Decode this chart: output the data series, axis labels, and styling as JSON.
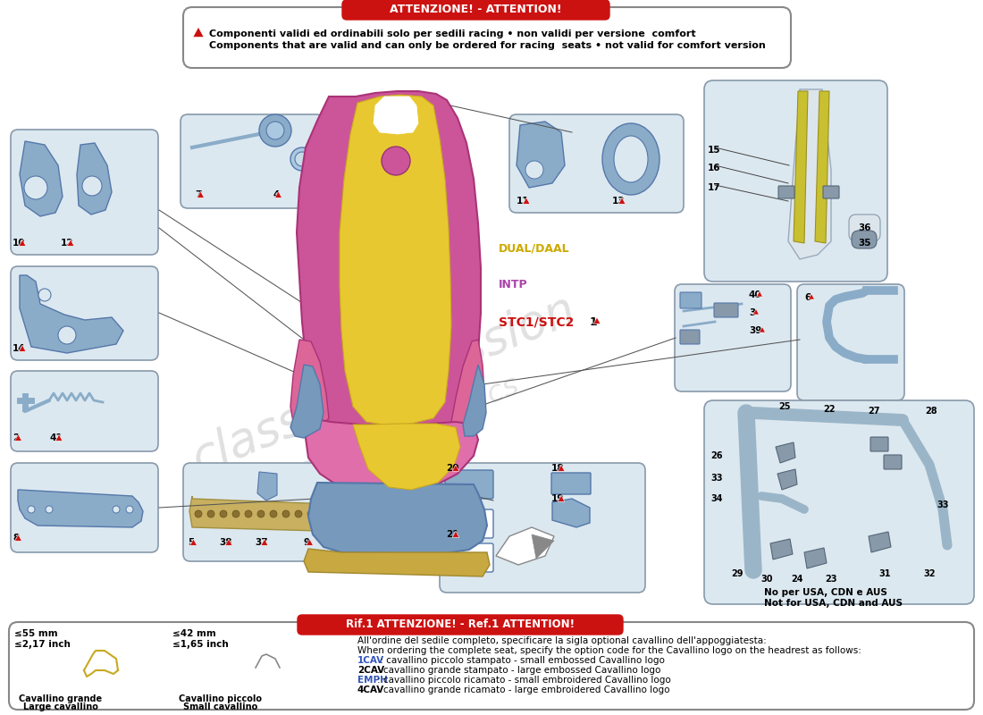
{
  "title": "ATTENZIONE! - ATTENTION!",
  "warning_text_it": "Componenti validi ed ordinabili solo per sedili racing • non validi per versione  comfort",
  "warning_text_en": "Components that are valid and can only be ordered for racing  seats • not valid for comfort version",
  "bottom_title": "Rif.1 ATTENZIONE! - Ref.1 ATTENTION!",
  "bottom_text_line1": "All'ordine del sedile completo, specificare la sigla optional cavallino dell'appoggiatesta:",
  "bottom_text_line2": "When ordering the complete seat, specify the option code for the Cavallino logo on the headrest as follows:",
  "cav1_label": "1CAV",
  "cav1_text": " : cavallino piccolo stampato - small embossed Cavallino logo",
  "cav2_label": "2CAV",
  "cav2_text": ": cavallino grande stampato - large embossed Cavallino logo",
  "emph_label": "EMPH",
  "emph_text": ": cavallino piccolo ricamato - small embroidered Cavallino logo",
  "cav4_label": "4CAV",
  "cav4_text": ": cavallino grande ricamato - large embroidered Cavallino logo",
  "label_dual": "DUAL/DAAL",
  "label_intp": "INTP",
  "label_stc": "STC1/STC2",
  "label_1": "1",
  "no_usa_1": "No per USA, CDN e AUS",
  "no_usa_2": "Not for USA, CDN and AUS",
  "meas_55mm": "≤55 mm",
  "meas_217": "≤2,17 inch",
  "meas_42mm": "≤42 mm",
  "meas_165": "≤1,65 inch",
  "cav_grande_1": "Cavallino grande",
  "cav_grande_2": "Large cavallino",
  "cav_piccolo_1": "Cavallino piccolo",
  "cav_piccolo_2": "Small cavallino",
  "bg_color": "#ffffff",
  "box_fill": "#dce8f0",
  "box_edge": "#8899aa",
  "seat_pink": "#cc5599",
  "seat_yellow": "#e8c830",
  "seat_blue_side": "#7799bb",
  "metal_blue": "#8aacc8",
  "metal_edge": "#5577aa",
  "red_warning": "#cc1111",
  "label_yellow_color": "#ccaa00",
  "label_intp_color": "#aa44aa",
  "label_stc_color": "#cc1111",
  "label_blue_color": "#3355bb",
  "watermark_color": "#cccccc"
}
